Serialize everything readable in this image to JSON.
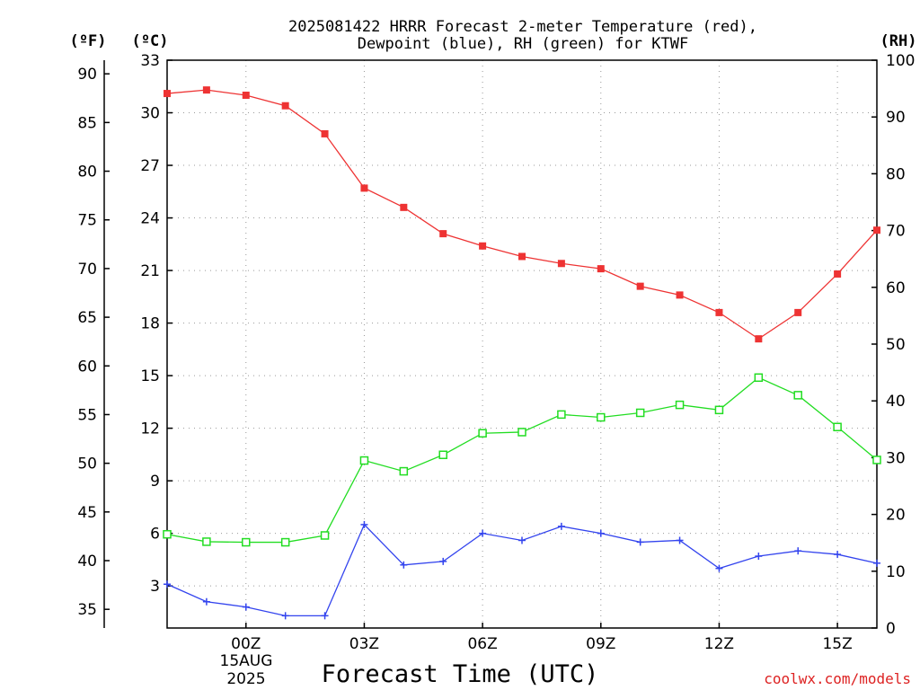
{
  "chart_data": {
    "type": "line",
    "title_lines": [
      "2025081422 HRRR Forecast 2-meter Temperature (red),",
      "Dewpoint (blue), RH (green) for KTWF"
    ],
    "xlabel": "Forecast Time (UTC)",
    "x_tick_labels": [
      "00Z",
      "03Z",
      "06Z",
      "09Z",
      "12Z",
      "15Z"
    ],
    "x_tick_hours": [
      2,
      5,
      8,
      11,
      14,
      17
    ],
    "x_date_label": [
      "15AUG",
      "2025"
    ],
    "x_range": [
      0,
      18
    ],
    "left_outer_axis": {
      "unit_label": "(ºF)",
      "ticks": [
        35,
        40,
        45,
        50,
        55,
        60,
        65,
        70,
        75,
        80,
        85,
        90
      ]
    },
    "left_inner_axis": {
      "unit_label": "(ºC)",
      "range": [
        0.6,
        33
      ],
      "ticks": [
        3,
        6,
        9,
        12,
        15,
        18,
        21,
        24,
        27,
        30,
        33
      ]
    },
    "right_axis": {
      "unit_label": "(RH)",
      "range": [
        0,
        100
      ],
      "ticks": [
        0,
        10,
        20,
        30,
        40,
        50,
        60,
        70,
        80,
        90,
        100
      ]
    },
    "grid": true,
    "series": [
      {
        "name": "Temperature",
        "axis": "celsius",
        "color": "#ee3333",
        "marker": "filled-square",
        "x": [
          0,
          1,
          2,
          3,
          4,
          5,
          6,
          7,
          8,
          9,
          10,
          11,
          12,
          13,
          14,
          15,
          16,
          17,
          18
        ],
        "values": [
          31.1,
          31.3,
          31.0,
          30.4,
          28.8,
          25.7,
          24.6,
          23.1,
          22.4,
          21.8,
          21.4,
          21.1,
          20.1,
          19.6,
          18.6,
          17.1,
          18.6,
          20.8,
          23.3
        ]
      },
      {
        "name": "Dewpoint",
        "axis": "celsius",
        "color": "#3344ee",
        "marker": "plus",
        "x": [
          0,
          1,
          2,
          3,
          4,
          5,
          6,
          7,
          8,
          9,
          10,
          11,
          12,
          13,
          14,
          15,
          16,
          17,
          18
        ],
        "values": [
          3.1,
          2.1,
          1.8,
          1.3,
          1.3,
          6.5,
          4.2,
          4.4,
          6.0,
          5.6,
          6.4,
          6.0,
          5.5,
          5.6,
          4.0,
          4.7,
          5.0,
          4.8,
          4.3
        ]
      },
      {
        "name": "RH",
        "axis": "rh",
        "color": "#22dd22",
        "marker": "open-square",
        "x": [
          0,
          1,
          2,
          3,
          4,
          5,
          6,
          7,
          8,
          9,
          10,
          11,
          12,
          13,
          14,
          15,
          16,
          17,
          18
        ],
        "values": [
          16.5,
          15.2,
          15.1,
          15.1,
          16.3,
          29.5,
          27.6,
          30.5,
          34.3,
          34.5,
          37.6,
          37.1,
          37.9,
          39.3,
          38.4,
          44.1,
          41.0,
          35.4,
          29.6
        ]
      }
    ],
    "credit": {
      "text": "coolwx.com/models",
      "color": "#dd2222"
    }
  }
}
